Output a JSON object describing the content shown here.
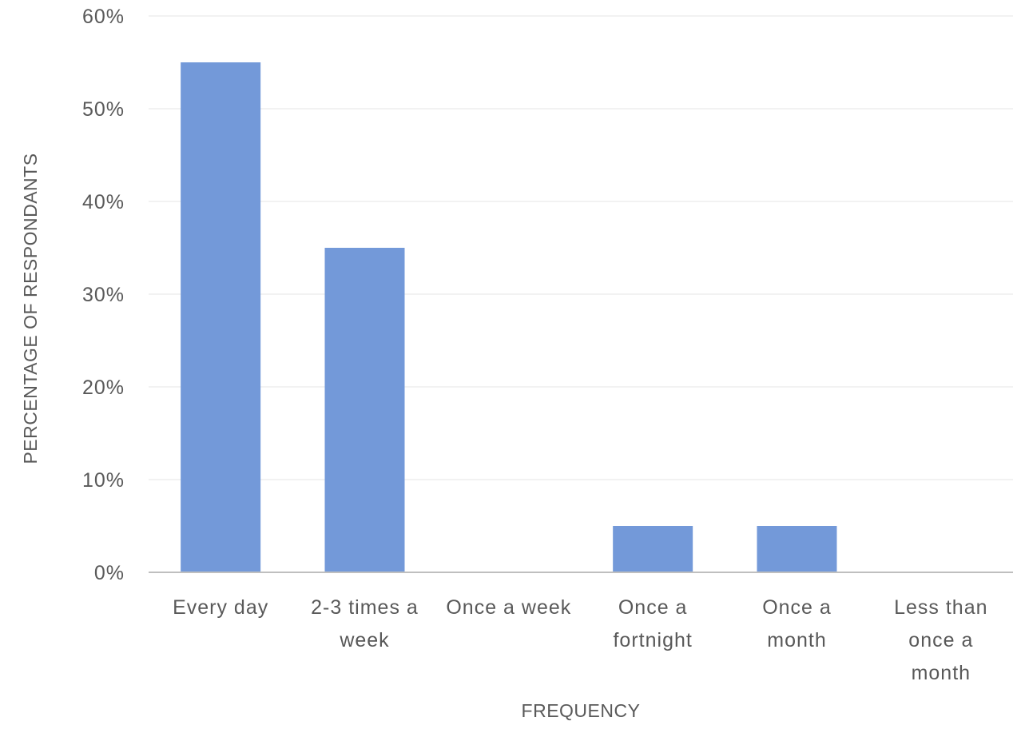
{
  "chart_data": {
    "type": "bar",
    "title": "",
    "xlabel": "FREQUENCY",
    "ylabel": "PERCENTAGE OF RESPONDANTS",
    "categories": [
      "Every day",
      "2-3 times a week",
      "Once a week",
      "Once a fortnight",
      "Once a month",
      "Less than once a month"
    ],
    "category_lines": [
      [
        "Every day"
      ],
      [
        "2-3 times a",
        "week"
      ],
      [
        "Once a week"
      ],
      [
        "Once a",
        "fortnight"
      ],
      [
        "Once a",
        "month"
      ],
      [
        "Less than",
        "once a",
        "month"
      ]
    ],
    "values": [
      55,
      35,
      0,
      5,
      5,
      0
    ],
    "value_format": "percent",
    "ylim": [
      0,
      60
    ],
    "yticks": [
      0,
      10,
      20,
      30,
      40,
      50,
      60
    ],
    "ytick_labels": [
      "0%",
      "10%",
      "20%",
      "30%",
      "40%",
      "50%",
      "60%"
    ],
    "grid": true,
    "legend": "none",
    "colors": {
      "bar": "#7399d9",
      "axis": "#bfbfbf",
      "grid": "#eeeeee",
      "text": "#595959"
    }
  }
}
